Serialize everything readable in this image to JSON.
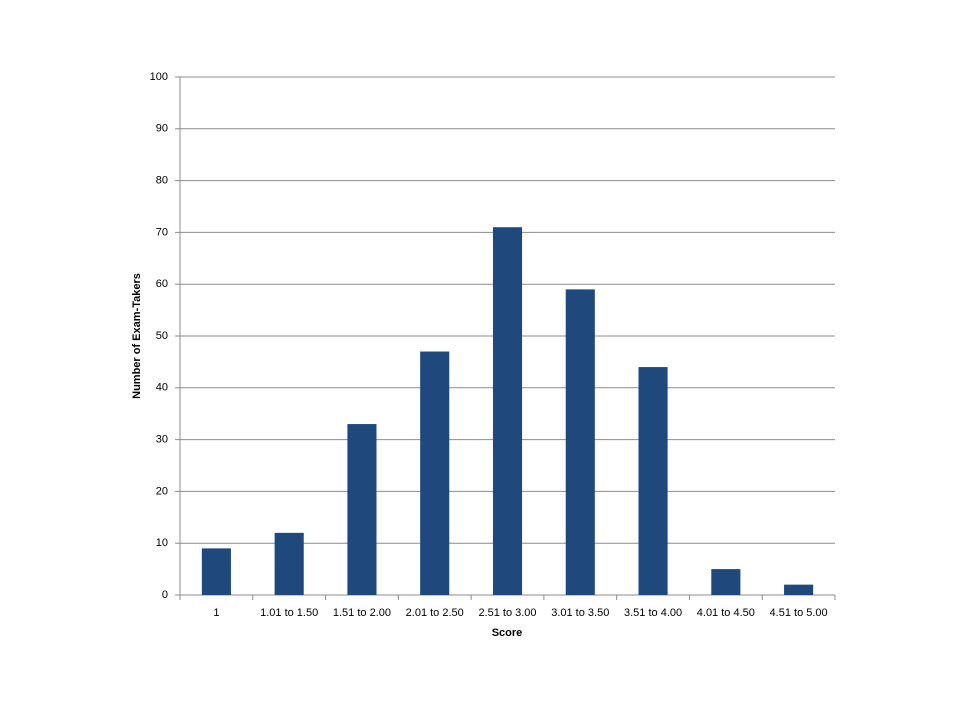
{
  "chart_data": {
    "type": "bar",
    "x_label": "Score",
    "y_label": "Number of Exam-Takers",
    "categories": [
      "1",
      "1.01 to 1.50",
      "1.51 to 2.00",
      "2.01 to 2.50",
      "2.51 to 3.00",
      "3.01 to 3.50",
      "3.51 to 4.00",
      "4.01 to 4.50",
      "4.51 to 5.00"
    ],
    "values": [
      9,
      12,
      33,
      47,
      71,
      59,
      44,
      5,
      2
    ],
    "color": "#1f497d",
    "ylim": [
      0,
      100
    ],
    "yticks": [
      0,
      10,
      20,
      30,
      40,
      50,
      60,
      70,
      80,
      90,
      100
    ],
    "grid": true
  }
}
